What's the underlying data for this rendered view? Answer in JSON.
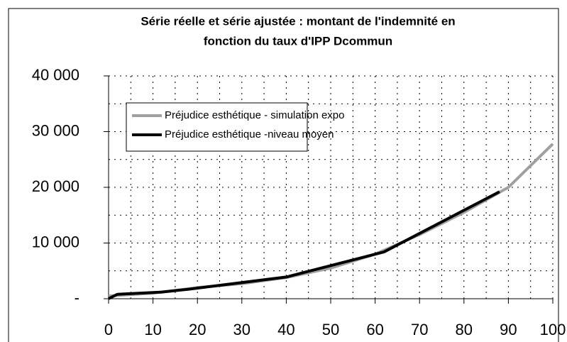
{
  "chart_data": {
    "type": "line",
    "title_lines": [
      "Série réelle et série ajustée  : montant de l'indemnité en",
      "fonction du taux d'IPP Dcommun"
    ],
    "xlim": [
      0,
      100
    ],
    "xticks": [
      0,
      10,
      20,
      30,
      40,
      50,
      60,
      70,
      80,
      90,
      100
    ],
    "ylim": [
      0,
      40000
    ],
    "yticks": [
      {
        "value": 0,
        "label": "-"
      },
      {
        "value": 10000,
        "label": "10 000"
      },
      {
        "value": 20000,
        "label": "20 000"
      },
      {
        "value": 30000,
        "label": "30 000"
      },
      {
        "value": 40000,
        "label": "40 000"
      }
    ],
    "grid": true,
    "grid_x": [
      5,
      10,
      15,
      20,
      25,
      30,
      35,
      40,
      45,
      50,
      55,
      60,
      65,
      70,
      75,
      80,
      85,
      90,
      95,
      100
    ],
    "grid_y": [
      5000,
      10000,
      15000,
      20000,
      25000,
      30000,
      35000,
      40000
    ],
    "legend": "upper left",
    "series": [
      {
        "name": "Préjudice esthétique - simulation expo",
        "color": "#a0a0a0",
        "x": [
          0,
          10,
          20,
          30,
          40,
          50,
          60,
          70,
          80,
          90,
          100
        ],
        "values": [
          500,
          1000,
          2000,
          2700,
          3800,
          5500,
          8000,
          11500,
          15500,
          20000,
          27800
        ]
      },
      {
        "name": "Préjudice esthétique -niveau moyen",
        "color": "#000000",
        "x": [
          0,
          2,
          12,
          18,
          40,
          62,
          88
        ],
        "values": [
          0,
          800,
          1200,
          1700,
          3900,
          8400,
          19200
        ]
      }
    ]
  }
}
